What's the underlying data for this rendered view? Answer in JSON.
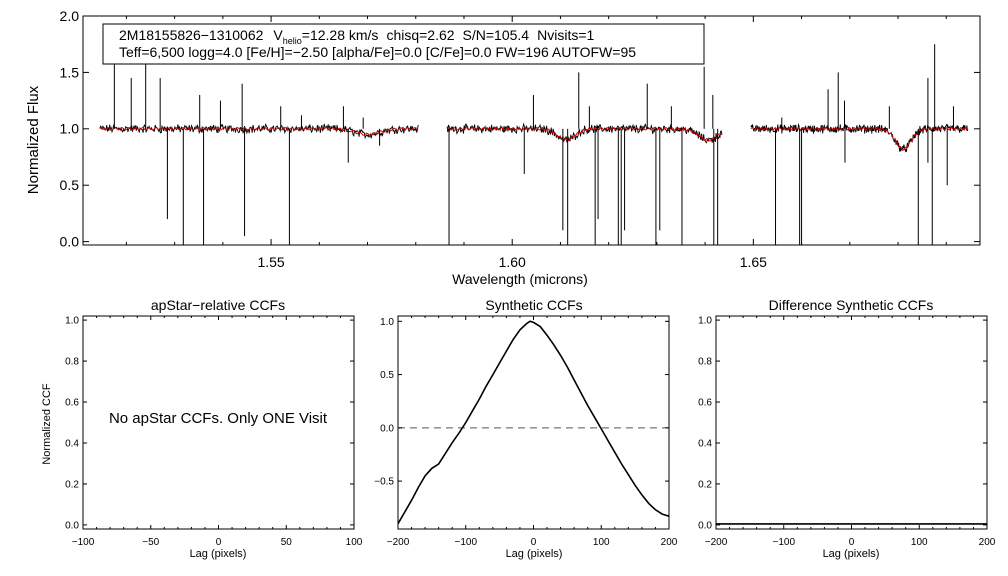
{
  "chart_data": [
    {
      "type": "line",
      "title": "",
      "xlabel": "Wavelength (microns)",
      "ylabel": "Normalized Flux",
      "xlim": [
        1.511,
        1.697
      ],
      "ylim": [
        -0.03,
        2.0
      ],
      "xticks": [
        1.55,
        1.6,
        1.65
      ],
      "xtick_labels": [
        "1.55",
        "1.60",
        "1.65"
      ],
      "yticks": [
        0.0,
        0.5,
        1.0,
        1.5,
        2.0
      ],
      "ytick_labels": [
        "0.0",
        "0.5",
        "1.0",
        "1.5",
        "2.0"
      ],
      "info": {
        "star": "2M18155826−1310062",
        "vhelio_v": "V",
        "vhelio_sub": "helio",
        "vhelio_value": "=12.28 km/s",
        "chisq": "chisq=2.62",
        "snr": "S/N=105.4",
        "nvisits": "Nvisits=1",
        "params": "Teff=6,500 logg=4.0 [Fe/H]=−2.50 [alpha/Fe]=0.0 [C/Fe]=0.0 FW=196 AUTOFW=95"
      },
      "series": [
        {
          "name": "observed spectrum",
          "color": "#000000",
          "chips": [
            [
              1.5145,
              1.5805
            ],
            [
              1.5865,
              1.6435
            ],
            [
              1.6495,
              1.6945
            ]
          ]
        },
        {
          "name": "synthetic model",
          "color": "#d40000",
          "chips": [
            [
              1.5145,
              1.5805
            ],
            [
              1.5865,
              1.6435
            ],
            [
              1.6495,
              1.6945
            ]
          ]
        }
      ],
      "features": {
        "absorption": [
          {
            "x": 1.57,
            "depth": 0.05,
            "width": 0.0025
          },
          {
            "x": 1.6112,
            "depth": 0.1,
            "width": 0.0018
          },
          {
            "x": 1.6407,
            "depth": 0.1,
            "width": 0.002
          },
          {
            "x": 1.6811,
            "depth": 0.18,
            "width": 0.0016
          }
        ],
        "spikes_up": [
          {
            "x": 1.5175,
            "top": 1.6
          },
          {
            "x": 1.521,
            "top": 1.45
          },
          {
            "x": 1.524,
            "top": 1.8
          },
          {
            "x": 1.527,
            "top": 1.45
          },
          {
            "x": 1.5352,
            "top": 1.3
          },
          {
            "x": 1.5395,
            "top": 1.25
          },
          {
            "x": 1.544,
            "top": 1.4
          },
          {
            "x": 1.552,
            "top": 1.2
          },
          {
            "x": 1.5563,
            "top": 1.12
          },
          {
            "x": 1.565,
            "top": 1.2
          },
          {
            "x": 1.5691,
            "top": 1.1
          },
          {
            "x": 1.6044,
            "top": 1.3
          },
          {
            "x": 1.6138,
            "top": 1.5
          },
          {
            "x": 1.616,
            "top": 1.2
          },
          {
            "x": 1.628,
            "top": 1.4
          },
          {
            "x": 1.633,
            "top": 1.2
          },
          {
            "x": 1.6398,
            "top": 1.55
          },
          {
            "x": 1.6416,
            "top": 1.3
          },
          {
            "x": 1.6559,
            "top": 1.1
          },
          {
            "x": 1.6655,
            "top": 1.35
          },
          {
            "x": 1.6676,
            "top": 1.5
          },
          {
            "x": 1.6689,
            "top": 1.25
          },
          {
            "x": 1.6782,
            "top": 1.2
          },
          {
            "x": 1.6862,
            "top": 1.45
          },
          {
            "x": 1.6876,
            "top": 1.75
          },
          {
            "x": 1.6915,
            "top": 1.2
          }
        ],
        "spikes_down": [
          {
            "x": 1.5285,
            "bottom": 0.2
          },
          {
            "x": 1.5318,
            "bottom": -0.03
          },
          {
            "x": 1.536,
            "bottom": -0.03
          },
          {
            "x": 1.5445,
            "bottom": 0.05
          },
          {
            "x": 1.5538,
            "bottom": -0.03
          },
          {
            "x": 1.566,
            "bottom": 0.7
          },
          {
            "x": 1.5725,
            "bottom": 0.85
          },
          {
            "x": 1.5869,
            "bottom": -0.03
          },
          {
            "x": 1.6025,
            "bottom": 0.6
          },
          {
            "x": 1.6105,
            "bottom": 0.1
          },
          {
            "x": 1.6115,
            "bottom": -0.03
          },
          {
            "x": 1.6172,
            "bottom": -0.03
          },
          {
            "x": 1.6178,
            "bottom": 0.2
          },
          {
            "x": 1.622,
            "bottom": -0.03
          },
          {
            "x": 1.6226,
            "bottom": -0.03
          },
          {
            "x": 1.6233,
            "bottom": 0.1
          },
          {
            "x": 1.6298,
            "bottom": -0.03
          },
          {
            "x": 1.6306,
            "bottom": 0.1
          },
          {
            "x": 1.6352,
            "bottom": -0.03
          },
          {
            "x": 1.6418,
            "bottom": -0.03
          },
          {
            "x": 1.6426,
            "bottom": -0.03
          },
          {
            "x": 1.6546,
            "bottom": -0.03
          },
          {
            "x": 1.6596,
            "bottom": -0.03
          },
          {
            "x": 1.66,
            "bottom": -0.03
          },
          {
            "x": 1.669,
            "bottom": 0.7
          },
          {
            "x": 1.6842,
            "bottom": -0.03
          },
          {
            "x": 1.6862,
            "bottom": 0.7
          },
          {
            "x": 1.6871,
            "bottom": -0.03
          },
          {
            "x": 1.6902,
            "bottom": 0.5
          }
        ]
      }
    },
    {
      "type": "line",
      "title": "apStar−relative CCFs",
      "xlabel": "Lag (pixels)",
      "ylabel": "Normalized CCF",
      "xlim": [
        -100,
        100
      ],
      "ylim": [
        -0.02,
        1.02
      ],
      "xticks": [
        -100,
        -50,
        0,
        50,
        100
      ],
      "xtick_labels": [
        "−100",
        "−50",
        "0",
        "50",
        "100"
      ],
      "yticks": [
        0.0,
        0.2,
        0.4,
        0.6,
        0.8,
        1.0
      ],
      "ytick_labels": [
        "0.0",
        "0.2",
        "0.4",
        "0.6",
        "0.8",
        "1.0"
      ],
      "message": "No apStar CCFs.  Only ONE Visit",
      "series": []
    },
    {
      "type": "line",
      "title": "Synthetic CCFs",
      "xlabel": "Lag (pixels)",
      "ylabel": "",
      "xlim": [
        -200,
        200
      ],
      "ylim": [
        -0.95,
        1.05
      ],
      "xticks": [
        -200,
        -100,
        0,
        100,
        200
      ],
      "xtick_labels": [
        "−200",
        "−100",
        "0",
        "100",
        "200"
      ],
      "yticks": [
        -0.5,
        0.0,
        0.5,
        1.0
      ],
      "ytick_labels": [
        "−0.5",
        "0.0",
        "0.5",
        "1.0"
      ],
      "zero_line": {
        "y": 0.0,
        "style": "dashed"
      },
      "series": [
        {
          "name": "synthetic CCF",
          "x": [
            -200,
            -190,
            -180,
            -170,
            -160,
            -150,
            -140,
            -130,
            -120,
            -110,
            -100,
            -90,
            -80,
            -70,
            -60,
            -50,
            -40,
            -30,
            -20,
            -10,
            -5,
            0,
            10,
            20,
            30,
            40,
            50,
            60,
            70,
            80,
            90,
            100,
            110,
            120,
            130,
            140,
            150,
            160,
            170,
            180,
            190,
            200
          ],
          "y": [
            -0.9,
            -0.79,
            -0.68,
            -0.56,
            -0.45,
            -0.38,
            -0.34,
            -0.24,
            -0.14,
            -0.05,
            0.05,
            0.16,
            0.27,
            0.39,
            0.5,
            0.61,
            0.72,
            0.83,
            0.92,
            0.98,
            1.0,
            0.99,
            0.95,
            0.87,
            0.78,
            0.68,
            0.57,
            0.45,
            0.33,
            0.21,
            0.1,
            -0.01,
            -0.12,
            -0.23,
            -0.34,
            -0.44,
            -0.54,
            -0.63,
            -0.71,
            -0.77,
            -0.81,
            -0.83
          ]
        }
      ]
    },
    {
      "type": "line",
      "title": "Difference Synthetic CCFs",
      "xlabel": "Lag (pixels)",
      "ylabel": "",
      "xlim": [
        -200,
        200
      ],
      "ylim": [
        -0.02,
        1.02
      ],
      "xticks": [
        -200,
        -100,
        0,
        100,
        200
      ],
      "xtick_labels": [
        "−200",
        "−100",
        "0",
        "100",
        "200"
      ],
      "yticks": [
        0.0,
        0.2,
        0.4,
        0.6,
        0.8,
        1.0
      ],
      "ytick_labels": [
        "0.0",
        "0.2",
        "0.4",
        "0.6",
        "0.8",
        "1.0"
      ],
      "series": [
        {
          "name": "difference CCF",
          "x": [
            -200,
            200
          ],
          "y": [
            0.0,
            0.0
          ]
        }
      ]
    }
  ]
}
